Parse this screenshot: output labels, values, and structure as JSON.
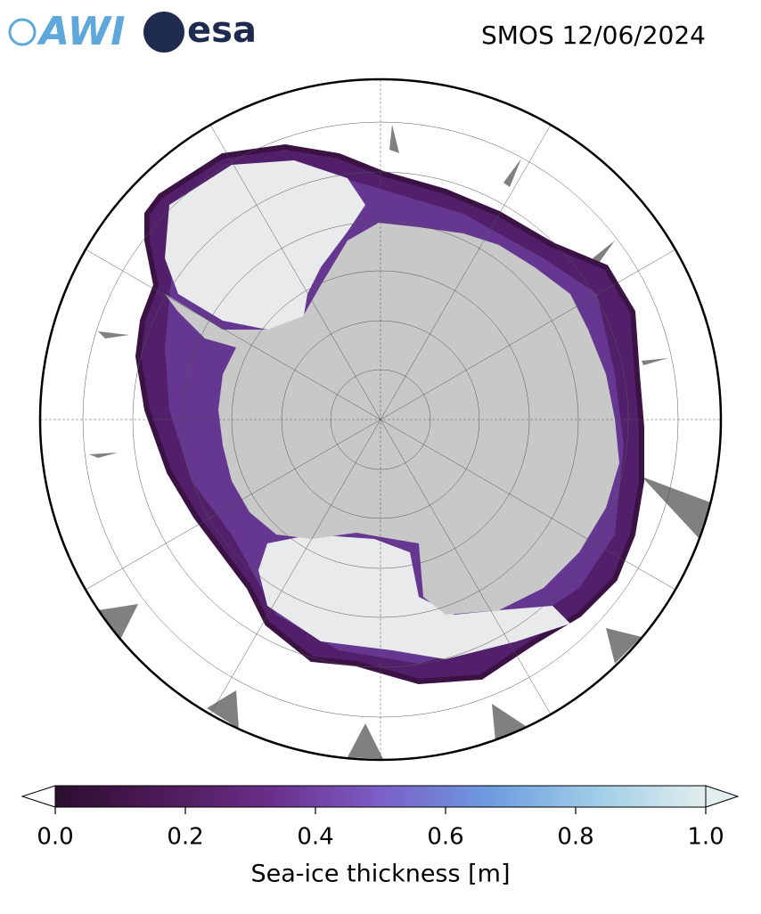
{
  "logos": [
    "AWI",
    "esa"
  ],
  "title": "SMOS 12/06/2024",
  "colorbar": {
    "label": "Sea-ice thickness [m]",
    "lim": [
      0,
      1
    ],
    "ticks": [
      {
        "value": 0,
        "label": "0.0"
      },
      {
        "value": 0.2,
        "label": "0.2"
      },
      {
        "value": 0.4,
        "label": "0.4"
      },
      {
        "value": 0.6,
        "label": "0.6"
      },
      {
        "value": 0.8,
        "label": "0.8"
      },
      {
        "value": 1,
        "label": "1.0"
      }
    ],
    "colors": [
      "#2b0f2e",
      "#4e1a5a",
      "#6a2f8a",
      "#7b5fc8",
      "#6d9be0",
      "#9fcde6",
      "#e3eeee"
    ]
  }
}
